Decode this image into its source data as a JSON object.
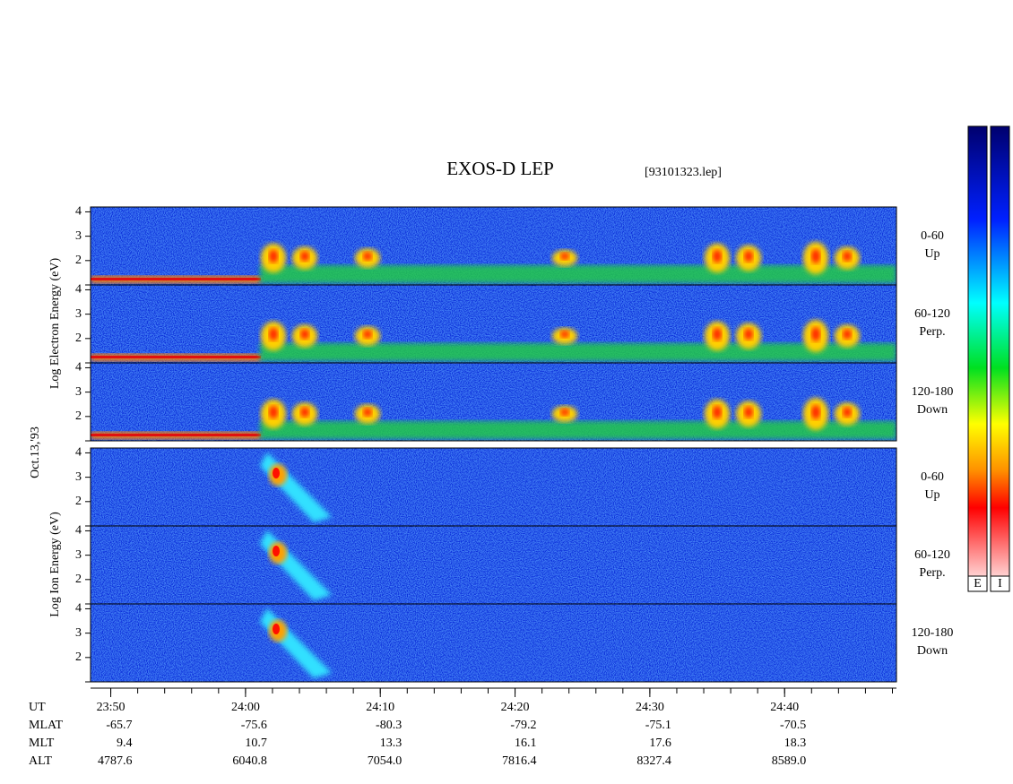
{
  "title": "EXOS-D LEP",
  "file_label": "[93101323.lep]",
  "date_label": "Oct.13,'93",
  "groups": [
    {
      "y_label": "Log  Electron  Energy  (eV)",
      "panels": [
        {
          "angle": "0-60",
          "direction": "Up"
        },
        {
          "angle": "60-120",
          "direction": "Perp."
        },
        {
          "angle": "120-180",
          "direction": "Down"
        }
      ]
    },
    {
      "y_label": "Log  Ion  Energy  (eV)",
      "panels": [
        {
          "angle": "0-60",
          "direction": "Up"
        },
        {
          "angle": "60-120",
          "direction": "Perp."
        },
        {
          "angle": "120-180",
          "direction": "Down"
        }
      ]
    }
  ],
  "energy_axis": {
    "ylim": [
      1,
      4.2
    ],
    "yticks": [
      2,
      3,
      4
    ]
  },
  "time_axis": {
    "xlim": [
      1428.5,
      1488.3
    ],
    "minor_step": 2,
    "xticks": [
      {
        "value": 1430,
        "label": "23:50"
      },
      {
        "value": 1440,
        "label": "24:00"
      },
      {
        "value": 1450,
        "label": "24:10"
      },
      {
        "value": 1460,
        "label": "24:20"
      },
      {
        "value": 1470,
        "label": "24:30"
      },
      {
        "value": 1480,
        "label": "24:40"
      }
    ]
  },
  "ephemeris": {
    "row_labels": [
      "UT",
      "MLAT",
      "MLT",
      "ALT"
    ],
    "rows": [
      [
        "-65.7",
        "-75.6",
        "-80.3",
        "-79.2",
        "-75.1",
        "-70.5"
      ],
      [
        "9.4",
        "10.7",
        "13.3",
        "16.1",
        "17.6",
        "18.3"
      ],
      [
        "4787.6",
        "6040.8",
        "7054.0",
        "7816.4",
        "8327.4",
        "8589.0"
      ]
    ]
  },
  "colorbars": [
    "E",
    "I"
  ]
}
